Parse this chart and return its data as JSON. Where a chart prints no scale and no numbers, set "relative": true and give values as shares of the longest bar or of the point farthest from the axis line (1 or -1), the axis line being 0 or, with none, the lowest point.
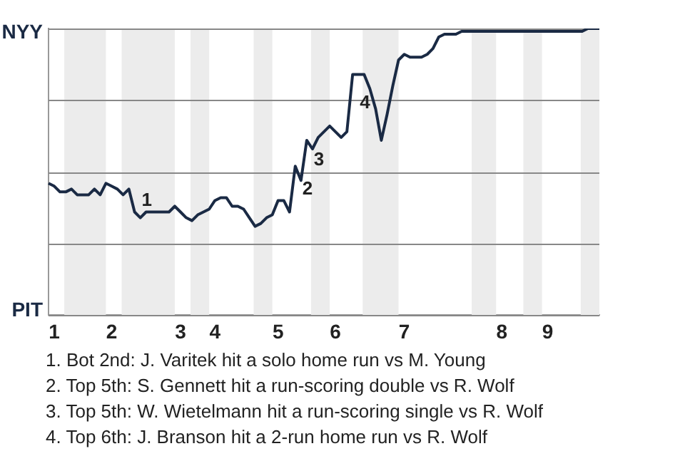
{
  "chart_data": {
    "type": "line",
    "relative": true,
    "categories": [
      null,
      "1",
      null,
      null,
      null,
      null,
      null,
      null,
      null,
      null,
      null,
      "2",
      null,
      null,
      null,
      null,
      null,
      null,
      null,
      null,
      null,
      null,
      null,
      "3",
      null,
      null,
      null,
      null,
      null,
      "4",
      null,
      null,
      null,
      null,
      null,
      null,
      null,
      null,
      null,
      null,
      "5",
      null,
      null,
      null,
      null,
      null,
      null,
      null,
      null,
      null,
      "6",
      null,
      null,
      null,
      null,
      null,
      null,
      null,
      null,
      null,
      null,
      null,
      "7",
      null,
      null,
      null,
      null,
      null,
      null,
      null,
      null,
      null,
      null,
      null,
      null,
      null,
      null,
      null,
      null,
      "8",
      null,
      null,
      null,
      null,
      null,
      null,
      null,
      "9",
      null,
      null,
      null,
      null,
      null,
      null,
      null,
      null,
      null
    ],
    "grid": "y",
    "legend": false,
    "marker": "none",
    "series": [
      {
        "color": "#1a2a44",
        "values": [
          0.46,
          0.45,
          0.43,
          0.43,
          0.44,
          0.42,
          0.42,
          0.42,
          0.44,
          0.42,
          0.46,
          0.45,
          0.44,
          0.42,
          0.44,
          0.36,
          0.34,
          0.36,
          0.36,
          0.36,
          0.36,
          0.36,
          0.38,
          0.36,
          0.34,
          0.33,
          0.35,
          0.36,
          0.37,
          0.4,
          0.41,
          0.41,
          0.38,
          0.38,
          0.37,
          0.34,
          0.31,
          0.32,
          0.34,
          0.35,
          0.4,
          0.4,
          0.36,
          0.52,
          0.47,
          0.61,
          0.58,
          0.62,
          0.64,
          0.66,
          0.64,
          0.62,
          0.64,
          0.84,
          0.84,
          0.84,
          0.79,
          0.72,
          0.61,
          0.7,
          0.8,
          0.89,
          0.91,
          0.9,
          0.9,
          0.9,
          0.91,
          0.93,
          0.97,
          0.98,
          0.98,
          0.98,
          0.99,
          0.99,
          0.99,
          0.99,
          0.99,
          0.99,
          0.99,
          0.99,
          0.99,
          0.99,
          0.99,
          0.99,
          0.99,
          0.99,
          0.99,
          0.99,
          0.99,
          0.99,
          0.99,
          0.99,
          0.99,
          0.99,
          1,
          1,
          1
        ],
        "line_style": "solid"
      }
    ],
    "annotations": [
      "NYY",
      "PIT",
      {
        "text": "1",
        "y": 0.36
      },
      {
        "text": "2",
        "y": 0.52
      },
      {
        "text": "3",
        "y": 0.61
      },
      {
        "text": "4",
        "y": 0.84
      },
      "1. Bot 2nd: J. Varitek hit a solo home run vs M. Young",
      "2. Top 5th: S. Gennett hit a run-scoring double vs R. Wolf",
      "3. Top 5th: W. Wietelmann hit a run-scoring single vs R. Wolf",
      "4. Top 6th: J. Branson hit a 2-run home run vs R. Wolf"
    ]
  }
}
